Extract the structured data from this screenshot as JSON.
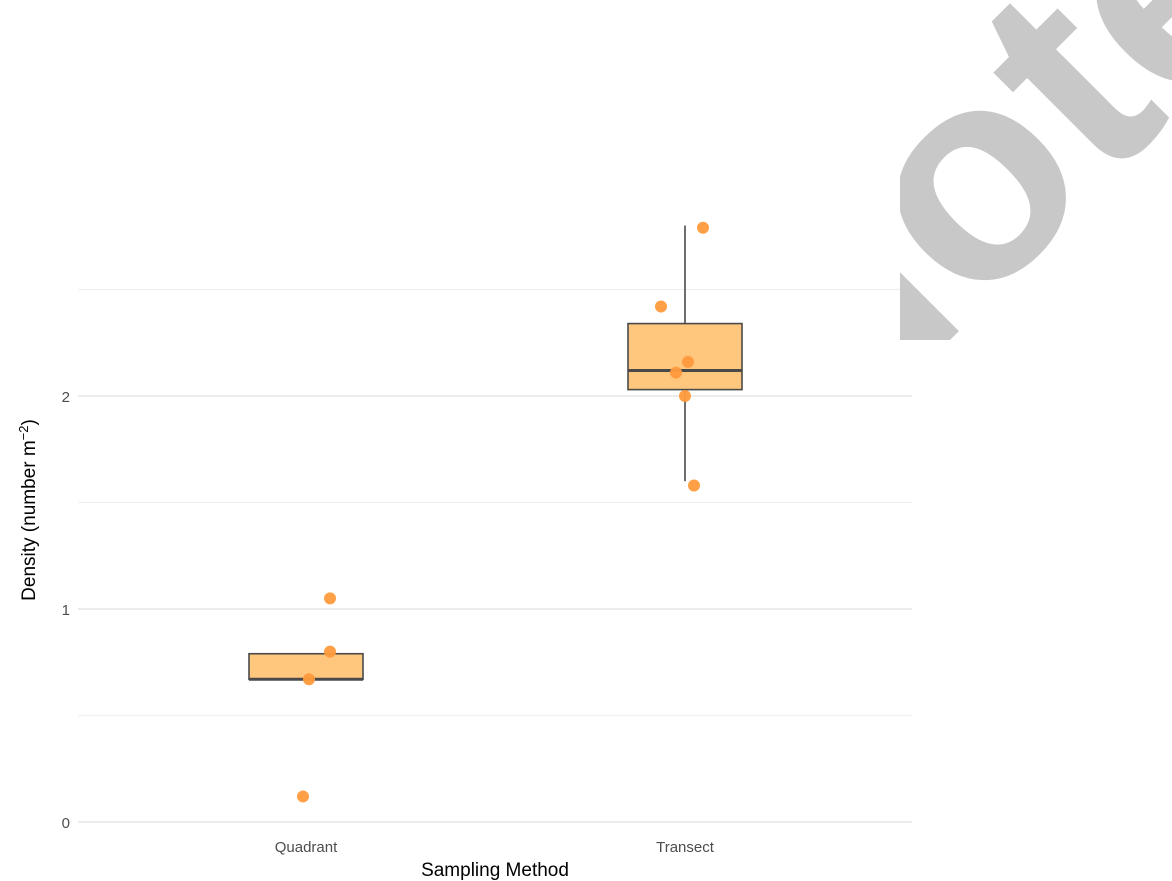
{
  "chart_data": {
    "type": "boxplot",
    "xlabel": "Sampling Method",
    "ylabel": "Density (number m",
    "ylabel_superscript": "−2",
    "ylabel_close": ")",
    "categories": [
      "Quadrant",
      "Transect"
    ],
    "ylim": [
      -0.05,
      2.9
    ],
    "yticks": [
      0,
      1,
      2
    ],
    "ytick_labels": [
      "0",
      "1",
      "2"
    ],
    "grid": true,
    "box_color": "#ffc77d",
    "box_outline_color": "#4a4a4a",
    "point_color": "#ff9a3c",
    "boxes": [
      {
        "category": "Quadrant",
        "q1": 0.67,
        "median": 0.67,
        "q3": 0.79,
        "whisker_low": 0.67,
        "whisker_high": 0.79,
        "points": [
          1.05,
          0.8,
          0.67,
          0.12
        ],
        "jitter": [
          0.08,
          0.08,
          0.01,
          -0.01
        ]
      },
      {
        "category": "Transect",
        "q1": 2.03,
        "median": 2.12,
        "q3": 2.34,
        "whisker_low": 1.6,
        "whisker_high": 2.8,
        "points": [
          2.79,
          2.42,
          2.16,
          2.11,
          2.0,
          1.58
        ],
        "jitter": [
          0.06,
          -0.08,
          0.01,
          -0.03,
          0.0,
          0.03
        ]
      }
    ]
  },
  "watermark": {
    "text": "Note",
    "color": "#c8c8c8"
  }
}
